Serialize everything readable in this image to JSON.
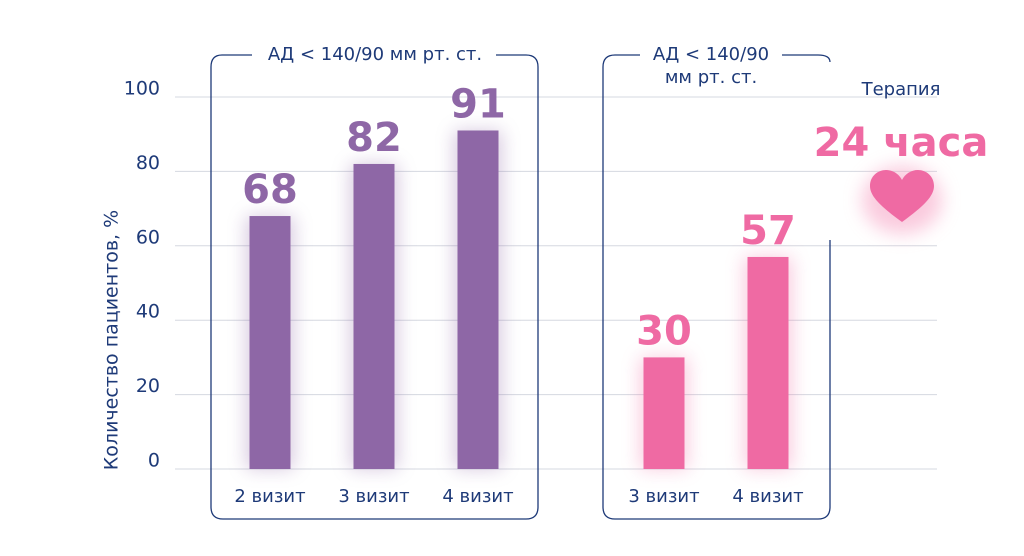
{
  "chart_data": {
    "type": "bar",
    "y_label": "Количество пациентов, %",
    "ylim": [
      0,
      100
    ],
    "yticks": [
      0,
      20,
      40,
      60,
      80,
      100
    ],
    "grid": true,
    "groups": [
      {
        "title_lines": [
          "АД < 140/90 мм рт. ст."
        ],
        "categories": [
          "2 визит",
          "3 визит",
          "4 визит"
        ],
        "values": [
          68,
          82,
          91
        ],
        "color": "#8e67a6"
      },
      {
        "title_lines": [
          "АД < 140/90",
          "мм рт. ст."
        ],
        "categories": [
          "3 визит",
          "4 визит"
        ],
        "values": [
          30,
          57
        ],
        "color": "#ef6aa3"
      }
    ],
    "annotation": {
      "label": "Терапия",
      "highlight": "24 часа"
    }
  }
}
